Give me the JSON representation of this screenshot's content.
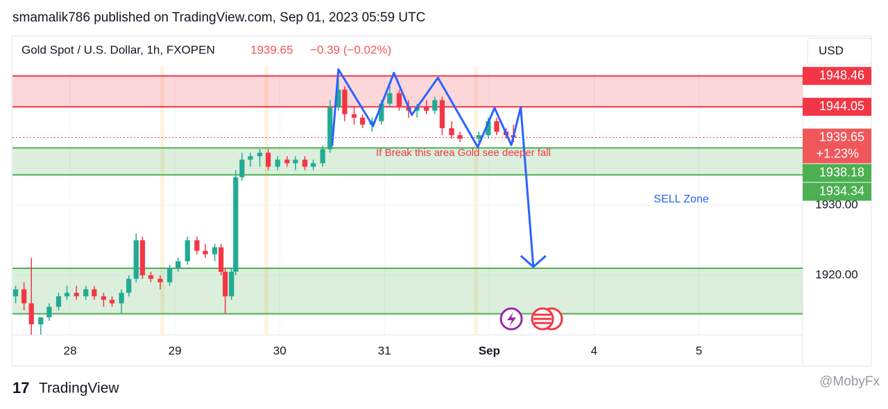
{
  "header": {
    "publisher": "smamalik786 published on TradingView.com, Sep 01, 2023 05:59 UTC",
    "symbol": "Gold Spot / U.S. Dollar, 1h, FXOPEN",
    "price": "1939.65",
    "change": "−0.39 (−0.02%)",
    "currency": "USD"
  },
  "chart_data": {
    "type": "candlestick",
    "x": [
      -0.52,
      -0.44,
      -0.37,
      -0.28,
      -0.2,
      -0.11,
      -0.03,
      0.06,
      0.15,
      0.23,
      0.32,
      0.4,
      0.49,
      0.56,
      0.63,
      0.69,
      0.77,
      0.86,
      0.95,
      1.03,
      1.12,
      1.21,
      1.29,
      1.38,
      1.44,
      1.48,
      1.54,
      1.58,
      1.64,
      1.72,
      1.81,
      1.89,
      1.98,
      2.07,
      2.15,
      2.24,
      2.32,
      2.41,
      2.48,
      2.56,
      2.62,
      2.71,
      2.79,
      2.88,
      2.97,
      3.05,
      3.14,
      3.23,
      3.31,
      3.4,
      3.48,
      3.55,
      3.64,
      3.72,
      3.9,
      3.99,
      4.07,
      4.16,
      4.23
    ],
    "open": [
      1917,
      1918,
      1916,
      1913,
      1914,
      1915.5,
      1917,
      1917.5,
      1917,
      1918,
      1917,
      1916.5,
      1916,
      1917.5,
      1919.5,
      1925,
      1920,
      1919.5,
      1919,
      1921,
      1922,
      1925,
      1923.5,
      1923,
      1924,
      1920.5,
      1917,
      1920.5,
      1934,
      1936.5,
      1937,
      1937.5,
      1935.5,
      1936.5,
      1936,
      1936.5,
      1935.5,
      1936,
      1938,
      1944,
      1946.5,
      1943,
      1942.5,
      1941.5,
      1942,
      1944.5,
      1946,
      1944,
      1943.5,
      1944,
      1943.5,
      1945,
      1941,
      1940,
      1939.5,
      1940,
      1942,
      1940.5,
      1940
    ],
    "high": [
      1918.5,
      1919,
      1922.5,
      1914,
      1916,
      1917.5,
      1918.5,
      1918.5,
      1918.5,
      1918.5,
      1917.5,
      1917,
      1918,
      1920,
      1926,
      1925.5,
      1920.5,
      1920,
      1921.5,
      1922.5,
      1925.5,
      1925.5,
      1924.5,
      1924.5,
      1924.5,
      1921,
      1921,
      1935,
      1937.5,
      1937.5,
      1938,
      1938,
      1937,
      1937,
      1937,
      1937,
      1936.5,
      1938.5,
      1945,
      1948,
      1947,
      1944,
      1943,
      1942.5,
      1945,
      1947,
      1946.5,
      1945,
      1944.5,
      1945,
      1945.5,
      1945.5,
      1942,
      1940.5,
      1940.5,
      1942.5,
      1942.5,
      1941,
      1941.5
    ],
    "low": [
      1916,
      1915,
      1911.5,
      1911.5,
      1913.5,
      1915,
      1916.5,
      1916.5,
      1916.5,
      1916.5,
      1915.5,
      1915.5,
      1914.5,
      1917,
      1919,
      1919.5,
      1919,
      1918,
      1918.5,
      1920.5,
      1921.5,
      1923,
      1922.5,
      1922,
      1920,
      1914.5,
      1916.5,
      1920,
      1933.5,
      1935.5,
      1935.5,
      1935,
      1935,
      1935.5,
      1935,
      1935,
      1935,
      1935.5,
      1937.5,
      1943.5,
      1942,
      1941.5,
      1941,
      1940.5,
      1941.5,
      1944,
      1943.5,
      1942.5,
      1942.5,
      1943,
      1943,
      1940,
      1939.5,
      1939,
      1939,
      1939.5,
      1940,
      1939.5,
      1939
    ],
    "close": [
      1918,
      1916,
      1913,
      1914,
      1915.5,
      1917,
      1917.5,
      1917,
      1918,
      1917,
      1916.5,
      1916,
      1917.5,
      1919.5,
      1925,
      1920,
      1919.5,
      1919,
      1921,
      1922,
      1925,
      1923.5,
      1923,
      1924,
      1920.5,
      1917,
      1920.5,
      1934,
      1936.5,
      1937,
      1937.5,
      1935.5,
      1936.5,
      1936,
      1936.5,
      1935.5,
      1936,
      1938,
      1944,
      1946.5,
      1943,
      1942.5,
      1941.5,
      1942,
      1944.5,
      1946,
      1944,
      1943.5,
      1944,
      1943.5,
      1945,
      1941,
      1940,
      1939.5,
      1940,
      1942,
      1940.5,
      1940,
      1939.65
    ],
    "up_color": "#22ab94",
    "down_color": "#f23645",
    "xlim": [
      -0.55,
      6.99
    ],
    "xticks": [
      {
        "value": 0,
        "label": "28"
      },
      {
        "value": 1,
        "label": "29"
      },
      {
        "value": 2,
        "label": "30"
      },
      {
        "value": 3,
        "label": "31"
      },
      {
        "value": 4,
        "label": "Sep"
      },
      {
        "value": 5,
        "label": "4"
      },
      {
        "value": 6,
        "label": "5"
      }
    ],
    "ylim": [
      1911.5,
      1949.7
    ],
    "yticks": [
      {
        "value": 1920,
        "label": "1920.00"
      },
      {
        "value": 1930,
        "label": "1930.00"
      }
    ],
    "zones": [
      {
        "low": 1944.05,
        "high": 1948.46,
        "color": "#f23645"
      },
      {
        "low": 1934.34,
        "high": 1938.18,
        "color": "#4caf50"
      },
      {
        "low": 1914.5,
        "high": 1921,
        "color": "#4caf50"
      }
    ],
    "price_labels": [
      {
        "value": 1948.46,
        "color": "#f23645"
      },
      {
        "value": 1944.05,
        "color": "#f23645"
      },
      {
        "value": 1939.65,
        "sublabel": "+1.23%",
        "color": "#f0575a"
      },
      {
        "value": 1938.18,
        "color": "#4caf50"
      },
      {
        "value": 1934.34,
        "color": "#4caf50"
      }
    ],
    "drawing": {
      "color": "#2962ff",
      "x": [
        2.5,
        2.56,
        2.89,
        3.09,
        3.26,
        3.51,
        3.89,
        4.05,
        4.21,
        4.3,
        4.42
      ],
      "y": [
        1938.5,
        1949.4,
        1941.3,
        1948.9,
        1942.9,
        1948.2,
        1938.3,
        1943.9,
        1938.6,
        1944,
        1921.2
      ]
    },
    "annotations": [
      "If Break this area Gold see deeper fall",
      "SELL Zone"
    ]
  },
  "footer": {
    "brand": "TradingView",
    "watermark": "@MobyFx"
  }
}
